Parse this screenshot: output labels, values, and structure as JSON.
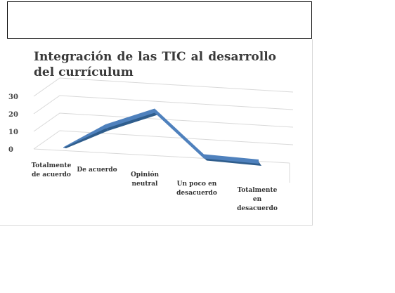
{
  "chart_data": {
    "type": "line",
    "title": "Integración de las TIC al desarrollo del currículum",
    "categories": [
      [
        "Totalmente",
        "de acuerdo"
      ],
      [
        "De acuerdo"
      ],
      [
        "Opinión",
        "neutral"
      ],
      [
        "Un poco en",
        "desacuerdo"
      ],
      [
        "Totalmente",
        "en",
        "desacuerdo"
      ]
    ],
    "series": [
      {
        "values": [
          0,
          14,
          25,
          1,
          0
        ]
      }
    ],
    "yticks": [
      0,
      10,
      20,
      30
    ],
    "ylim": [
      0,
      30
    ],
    "grid": true,
    "style": "3d-line",
    "colors": {
      "line_top": "#4f81bd",
      "line_side": "#2f5d8c",
      "grid": "#d9d9d9"
    }
  }
}
